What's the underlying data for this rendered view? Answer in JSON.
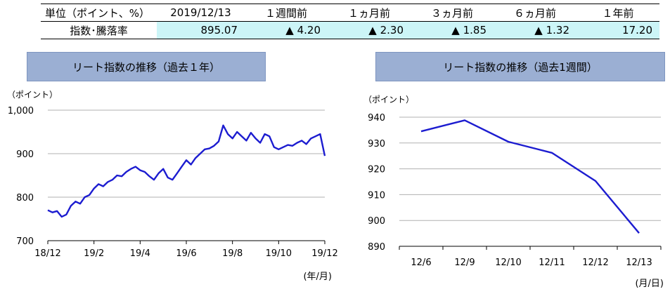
{
  "summary": {
    "header": [
      "単位（ポイント、%）",
      "2019/12/13",
      "１週間前",
      "１ヵ月前",
      "３ヵ月前",
      "６ヵ月前",
      "１年前"
    ],
    "row_label": "指数･騰落率",
    "values": [
      "895.07",
      "▲ 4.20",
      "▲ 2.30",
      "▲ 1.85",
      "▲ 1.32",
      "17.20"
    ]
  },
  "colors": {
    "line": "#1c1cd0",
    "banner": "#9bafd3",
    "highlight": "#ccf5f7",
    "grid": "#b0b0b0"
  },
  "chart_data": [
    {
      "type": "line",
      "title": "リート指数の推移（過去１年）",
      "y_unit": "（ポイント）",
      "x_unit": "(年/月)",
      "ylim": [
        700,
        1000
      ],
      "yticks": [
        "1,000",
        "900",
        "800",
        "700"
      ],
      "ytick_values": [
        1000,
        900,
        800,
        700
      ],
      "xticks": [
        "18/12",
        "19/2",
        "19/4",
        "19/6",
        "19/8",
        "19/10",
        "19/12"
      ],
      "x_range_months": [
        0,
        12
      ],
      "series": [
        {
          "x": [
            0,
            0.2,
            0.4,
            0.6,
            0.8,
            1.0,
            1.2,
            1.4,
            1.6,
            1.8,
            2.0,
            2.2,
            2.4,
            2.6,
            2.8,
            3.0,
            3.2,
            3.4,
            3.6,
            3.8,
            4.0,
            4.2,
            4.4,
            4.6,
            4.8,
            5.0,
            5.2,
            5.4,
            5.6,
            5.8,
            6.0,
            6.2,
            6.4,
            6.6,
            6.8,
            7.0,
            7.2,
            7.4,
            7.6,
            7.8,
            8.0,
            8.2,
            8.4,
            8.6,
            8.8,
            9.0,
            9.2,
            9.4,
            9.6,
            9.8,
            10.0,
            10.2,
            10.4,
            10.6,
            10.8,
            11.0,
            11.2,
            11.4,
            11.6,
            11.8,
            12.0
          ],
          "values": [
            770,
            765,
            768,
            755,
            760,
            780,
            790,
            785,
            800,
            805,
            820,
            830,
            825,
            835,
            840,
            850,
            848,
            858,
            865,
            870,
            862,
            858,
            848,
            840,
            855,
            865,
            845,
            840,
            855,
            870,
            885,
            875,
            890,
            900,
            910,
            912,
            918,
            928,
            965,
            945,
            935,
            950,
            940,
            930,
            948,
            935,
            925,
            945,
            940,
            915,
            910,
            915,
            920,
            918,
            925,
            930,
            922,
            935,
            940,
            945,
            895
          ]
        }
      ]
    },
    {
      "type": "line",
      "title": "リート指数の推移（過去1週間）",
      "y_unit": "（ポイント）",
      "x_unit": "(月/日)",
      "ylim": [
        890,
        940
      ],
      "yticks": [
        "940",
        "930",
        "920",
        "910",
        "900",
        "890"
      ],
      "ytick_values": [
        940,
        930,
        920,
        910,
        900,
        890
      ],
      "categories": [
        "12/6",
        "12/9",
        "12/10",
        "12/11",
        "12/12",
        "12/13"
      ],
      "series": [
        {
          "values": [
            934.5,
            938.8,
            930.5,
            926.2,
            915.3,
            895.1
          ]
        }
      ]
    }
  ]
}
